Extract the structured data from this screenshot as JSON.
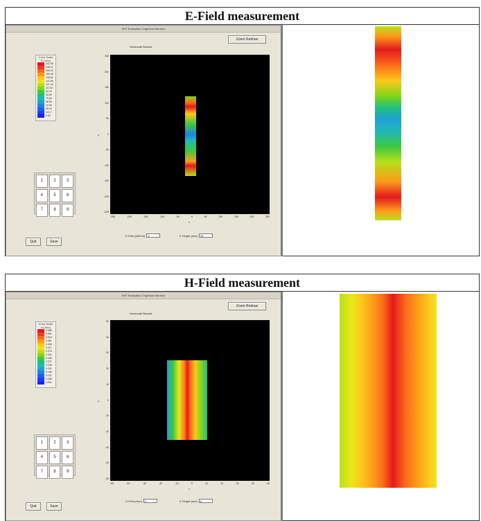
{
  "sections": [
    {
      "title": "E-Field measurement",
      "app_title": "SHT Evaluation Graphical Interface",
      "redraw_label": "Zoom Redraw",
      "plot_caption": "Horizontal Results",
      "scale_title": "Color Scale",
      "scale_unit": "E (V/m)",
      "scale_values": [
        "212.48",
        "198.31",
        "184.15",
        "169.98",
        "155.82",
        "141.65",
        "127.49",
        "113.32",
        "99.16",
        "84.99",
        "70.83",
        "56.66",
        "42.50",
        "28.33",
        "14.17",
        "0.00"
      ],
      "scale_colors": [
        "#e31a1c",
        "#f03b20",
        "#fd6a1a",
        "#fd9a1a",
        "#fdc81a",
        "#e8e81a",
        "#b8e01a",
        "#7fd61a",
        "#3fc83f",
        "#1fbf7f",
        "#1fb8b8",
        "#1f9fd6",
        "#1f80e6",
        "#1f5ff0",
        "#1f3ff5",
        "#1f1ff8"
      ],
      "keypad": [
        "1",
        "2",
        "3",
        "4",
        "5",
        "6",
        "7",
        "8",
        "9"
      ],
      "y_ticks": [
        "250",
        "200",
        "150",
        "100",
        "50",
        "0",
        "-50",
        "-100",
        "-150",
        "-200",
        "-250"
      ],
      "x_ticks": [
        "-250",
        "-200",
        "-150",
        "-100",
        "-50",
        "0",
        "50",
        "100",
        "150",
        "200",
        "250"
      ],
      "y_label": "y",
      "x_label": "x",
      "quit_label": "Quit",
      "save_label": "Save",
      "field_a_label": "E-Field (dBV/m)",
      "field_a_value": "0",
      "field_b_label": "Z-Height (mm)",
      "field_b_value": "25"
    },
    {
      "title": "H-Field measurement",
      "app_title": "SHT Evaluation Graphical Interface",
      "redraw_label": "Zoom Redraw",
      "plot_caption": "Horizontal Results",
      "scale_title": "Color Scale",
      "scale_unit": "H (A/m)",
      "scale_values": [
        "0.586",
        "0.551",
        "0.516",
        "0.481",
        "0.446",
        "0.411",
        "0.376",
        "0.341",
        "0.306",
        "0.271",
        "0.236",
        "0.201",
        "0.166",
        "0.131",
        "0.096",
        "0.061"
      ],
      "scale_colors": [
        "#e31a1c",
        "#f03b20",
        "#fd6a1a",
        "#fd9a1a",
        "#fdc81a",
        "#e8e81a",
        "#b8e01a",
        "#7fd61a",
        "#3fc83f",
        "#1fbf7f",
        "#1fb8b8",
        "#1f9fd6",
        "#1f80e6",
        "#1f5ff0",
        "#1f3ff5",
        "#1f1ff8"
      ],
      "keypad": [
        "1",
        "2",
        "3",
        "4",
        "5",
        "6",
        "7",
        "8",
        "9"
      ],
      "y_ticks": [
        "50",
        "40",
        "30",
        "20",
        "10",
        "0",
        "-10",
        "-20",
        "-30",
        "-40",
        "-50"
      ],
      "x_ticks": [
        "-50",
        "-40",
        "-30",
        "-20",
        "-10",
        "0",
        "10",
        "20",
        "30",
        "40",
        "50"
      ],
      "y_label": "y",
      "x_label": "x",
      "quit_label": "Quit",
      "save_label": "Save",
      "field_a_label": "H-Field (A/m)",
      "field_a_value": "0",
      "field_b_label": "Z-Height (mm)",
      "field_b_value": "5"
    }
  ],
  "colors": {
    "app_bg": "#e8e4d8",
    "plot_bg": "#000000",
    "border": "#333333"
  }
}
